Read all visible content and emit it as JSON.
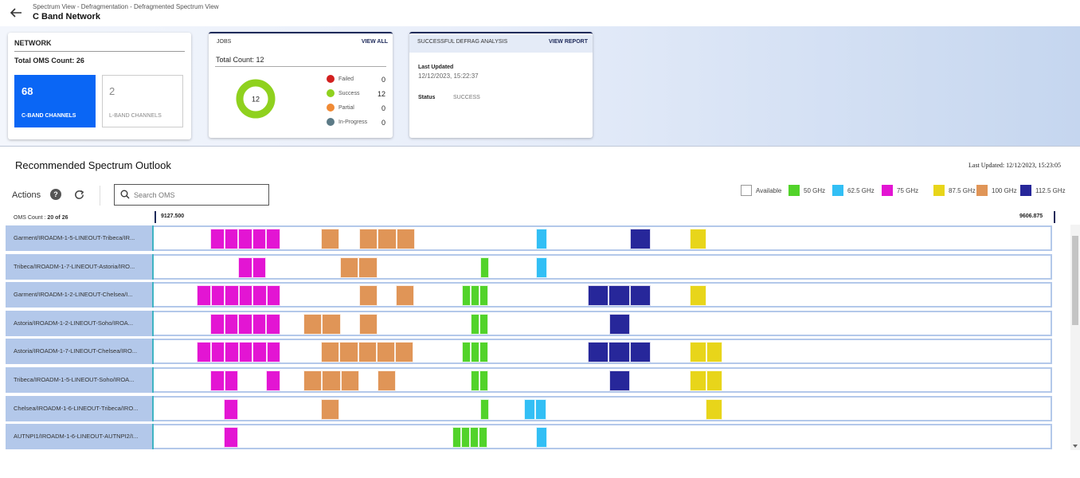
{
  "header": {
    "breadcrumb": "Spectrum View - Defragmentation - Defragmented Spectrum View",
    "title": "C Band Network"
  },
  "network_card": {
    "title": "NETWORK",
    "total": "Total OMS Count: 26",
    "c_band": {
      "count": "68",
      "label": "C-BAND CHANNELS"
    },
    "l_band": {
      "count": "2",
      "label": "L-BAND CHANNELS"
    }
  },
  "jobs_card": {
    "title": "JOBS",
    "link": "VIEW ALL",
    "total": "Total Count: 12",
    "donut_value": "12",
    "statuses": [
      {
        "label": "Failed",
        "value": "0",
        "color": "#d2201f"
      },
      {
        "label": "Success",
        "value": "12",
        "color": "#8fd11e"
      },
      {
        "label": "Partial",
        "value": "0",
        "color": "#f08a35"
      },
      {
        "label": "In-Progress",
        "value": "0",
        "color": "#5b7a86"
      }
    ]
  },
  "defrag_card": {
    "title": "SUCCESSFUL DEFRAG ANALYSIS",
    "link": "VIEW REPORT",
    "last_updated_label": "Last Updated",
    "last_updated_value": "12/12/2023, 15:22:37",
    "status_label": "Status",
    "status_value": "SUCCESS"
  },
  "outlook": {
    "title": "Recommended Spectrum Outlook",
    "last_updated": "Last Updated: 12/12/2023, 15:23:05",
    "actions_label": "Actions",
    "help_glyph": "?",
    "search_placeholder": "Search OMS",
    "oms_count_label": "OMS Count :",
    "oms_count_value": "20 of 26",
    "freq_start": "9127.500",
    "freq_end": "9606.875"
  },
  "legend": [
    {
      "label": "Available",
      "color": "#ffffff"
    },
    {
      "label": "50 GHz",
      "color": "#52d32a"
    },
    {
      "label": "62.5 GHz",
      "color": "#32bff5"
    },
    {
      "label": "75 GHz",
      "color": "#e315d3"
    },
    {
      "label": "87.5 GHz",
      "color": "#e8d51a"
    },
    {
      "label": "100 GHz",
      "color": "#e09557"
    },
    {
      "label": "112.5 GHz",
      "color": "#27279a"
    }
  ],
  "oms_rows": [
    {
      "name": "Garment/IROADM-1-5-LINEOUT-Tribeca/IR...",
      "channels": [
        {
          "type": "75",
          "count": 5,
          "start": 71
        },
        {
          "type": "100",
          "count": 1,
          "start": 210
        },
        {
          "type": "100",
          "count": 3,
          "start": 258
        },
        {
          "type": "62.5",
          "count": 1,
          "start": 480
        },
        {
          "type": "112.5",
          "count": 1,
          "start": 598
        },
        {
          "type": "87.5",
          "count": 1,
          "start": 673
        }
      ]
    },
    {
      "name": "Tribeca/IROADM-1-7-LINEOUT-Astoria/IRO...",
      "channels": [
        {
          "type": "75",
          "count": 2,
          "start": 106
        },
        {
          "type": "100",
          "count": 2,
          "start": 234
        },
        {
          "type": "50",
          "count": 1,
          "start": 410
        },
        {
          "type": "62.5",
          "count": 1,
          "start": 480
        }
      ]
    },
    {
      "name": "Garment/IROADM-1-2-LINEOUT-Chelsea/I...",
      "channels": [
        {
          "type": "75",
          "count": 6,
          "start": 54
        },
        {
          "type": "100",
          "count": 1,
          "start": 258
        },
        {
          "type": "100",
          "count": 1,
          "start": 304
        },
        {
          "type": "50",
          "count": 3,
          "start": 387
        },
        {
          "type": "112.5",
          "count": 3,
          "start": 545
        },
        {
          "type": "87.5",
          "count": 1,
          "start": 673
        }
      ]
    },
    {
      "name": "Astoria/IROADM-1-2-LINEOUT-Soho/IROA...",
      "channels": [
        {
          "type": "75",
          "count": 5,
          "start": 71
        },
        {
          "type": "100",
          "count": 2,
          "start": 188
        },
        {
          "type": "100",
          "count": 1,
          "start": 258
        },
        {
          "type": "50",
          "count": 2,
          "start": 398
        },
        {
          "type": "112.5",
          "count": 1,
          "start": 572
        }
      ]
    },
    {
      "name": "Astoria/IROADM-1-7-LINEOUT-Chelsea/IRO...",
      "channels": [
        {
          "type": "75",
          "count": 6,
          "start": 54
        },
        {
          "type": "100",
          "count": 5,
          "start": 210
        },
        {
          "type": "50",
          "count": 3,
          "start": 387
        },
        {
          "type": "112.5",
          "count": 3,
          "start": 545
        },
        {
          "type": "87.5",
          "count": 2,
          "start": 673
        }
      ]
    },
    {
      "name": "Tribeca/IROADM-1-5-LINEOUT-Soho/IROA...",
      "channels": [
        {
          "type": "75",
          "count": 2,
          "start": 71
        },
        {
          "type": "75",
          "count": 1,
          "start": 141
        },
        {
          "type": "100",
          "count": 3,
          "start": 188
        },
        {
          "type": "100",
          "count": 1,
          "start": 281
        },
        {
          "type": "50",
          "count": 2,
          "start": 398
        },
        {
          "type": "112.5",
          "count": 1,
          "start": 572
        },
        {
          "type": "87.5",
          "count": 2,
          "start": 673
        }
      ]
    },
    {
      "name": "Chelsea/IROADM-1-6-LINEOUT-Tribeca/IRO...",
      "channels": [
        {
          "type": "75",
          "count": 1,
          "start": 88
        },
        {
          "type": "100",
          "count": 1,
          "start": 210
        },
        {
          "type": "50",
          "count": 1,
          "start": 410
        },
        {
          "type": "62.5",
          "count": 2,
          "start": 465
        },
        {
          "type": "87.5",
          "count": 1,
          "start": 693
        }
      ]
    },
    {
      "name": "AUTNPI1/IROADM-1-6-LINEOUT-AUTNPI2/I...",
      "channels": [
        {
          "type": "75",
          "count": 1,
          "start": 88
        },
        {
          "type": "50",
          "count": 4,
          "start": 375
        },
        {
          "type": "62.5",
          "count": 1,
          "start": 480
        }
      ]
    }
  ]
}
